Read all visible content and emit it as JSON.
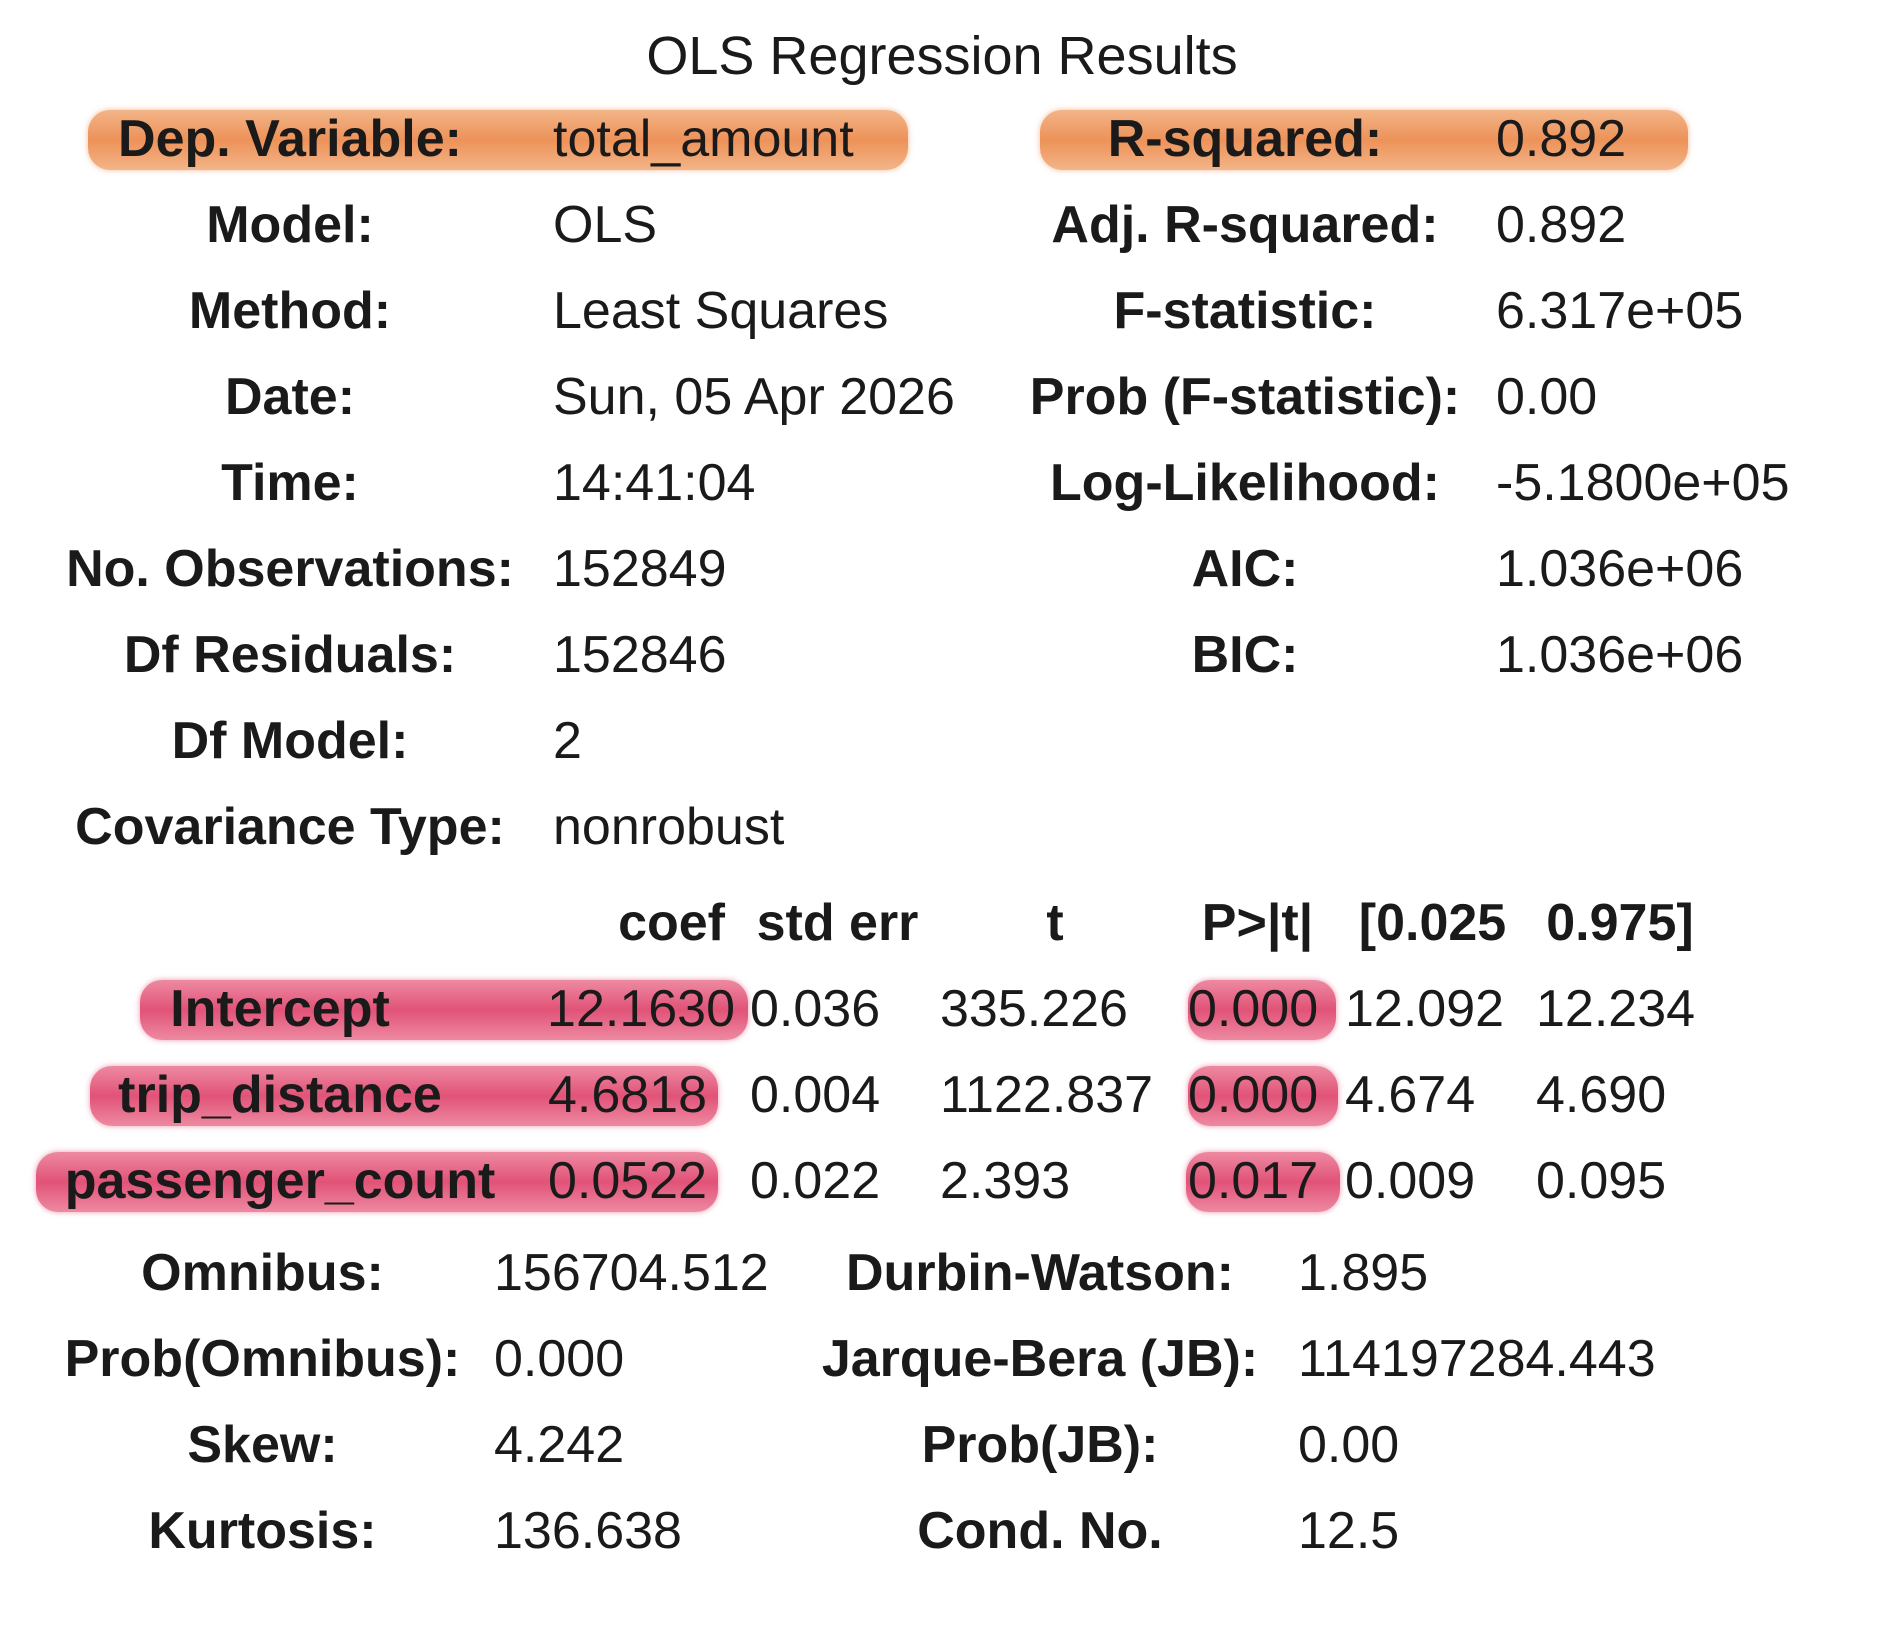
{
  "title": "OLS Regression Results",
  "colors": {
    "highlight_orange": "#ec8c50",
    "highlight_red": "#de446c",
    "text": "#1a1a1a"
  },
  "summary_left": [
    {
      "label": "Dep. Variable:",
      "value": "total_amount"
    },
    {
      "label": "Model:",
      "value": "OLS"
    },
    {
      "label": "Method:",
      "value": "Least Squares"
    },
    {
      "label": "Date:",
      "value": "Sun, 05 Apr 2026"
    },
    {
      "label": "Time:",
      "value": "14:41:04"
    },
    {
      "label": "No. Observations:",
      "value": "152849"
    },
    {
      "label": "Df Residuals:",
      "value": "152846"
    },
    {
      "label": "Df Model:",
      "value": "2"
    },
    {
      "label": "Covariance Type:",
      "value": "nonrobust"
    }
  ],
  "summary_right": [
    {
      "label": "R-squared:",
      "value": "0.892"
    },
    {
      "label": "Adj. R-squared:",
      "value": "0.892"
    },
    {
      "label": "F-statistic:",
      "value": "6.317e+05"
    },
    {
      "label": "Prob (F-statistic):",
      "value": "0.00"
    },
    {
      "label": "Log-Likelihood:",
      "value": "-5.1800e+05"
    },
    {
      "label": "AIC:",
      "value": "1.036e+06"
    },
    {
      "label": "BIC:",
      "value": "1.036e+06"
    }
  ],
  "coef_table": {
    "headers": [
      "coef",
      "std err",
      "t",
      "P>|t|",
      "[0.025",
      "0.975]"
    ],
    "rows": [
      {
        "name": "Intercept",
        "coef": "12.1630",
        "std_err": "0.036",
        "t": "335.226",
        "p": "0.000",
        "ci_low": "12.092",
        "ci_high": "12.234"
      },
      {
        "name": "trip_distance",
        "coef": "4.6818",
        "std_err": "0.004",
        "t": "1122.837",
        "p": "0.000",
        "ci_low": "4.674",
        "ci_high": "4.690"
      },
      {
        "name": "passenger_count",
        "coef": "0.0522",
        "std_err": "0.022",
        "t": "2.393",
        "p": "0.017",
        "ci_low": "0.009",
        "ci_high": "0.095"
      }
    ]
  },
  "diagnostics_left": [
    {
      "label": "Omnibus:",
      "value": "156704.512"
    },
    {
      "label": "Prob(Omnibus):",
      "value": "0.000"
    },
    {
      "label": "Skew:",
      "value": "4.242"
    },
    {
      "label": "Kurtosis:",
      "value": "136.638"
    }
  ],
  "diagnostics_right": [
    {
      "label": "Durbin-Watson:",
      "value": "1.895"
    },
    {
      "label": "Jarque-Bera (JB):",
      "value": "114197284.443"
    },
    {
      "label": "Prob(JB):",
      "value": "0.00"
    },
    {
      "label": "Cond. No.",
      "value": "12.5"
    }
  ]
}
